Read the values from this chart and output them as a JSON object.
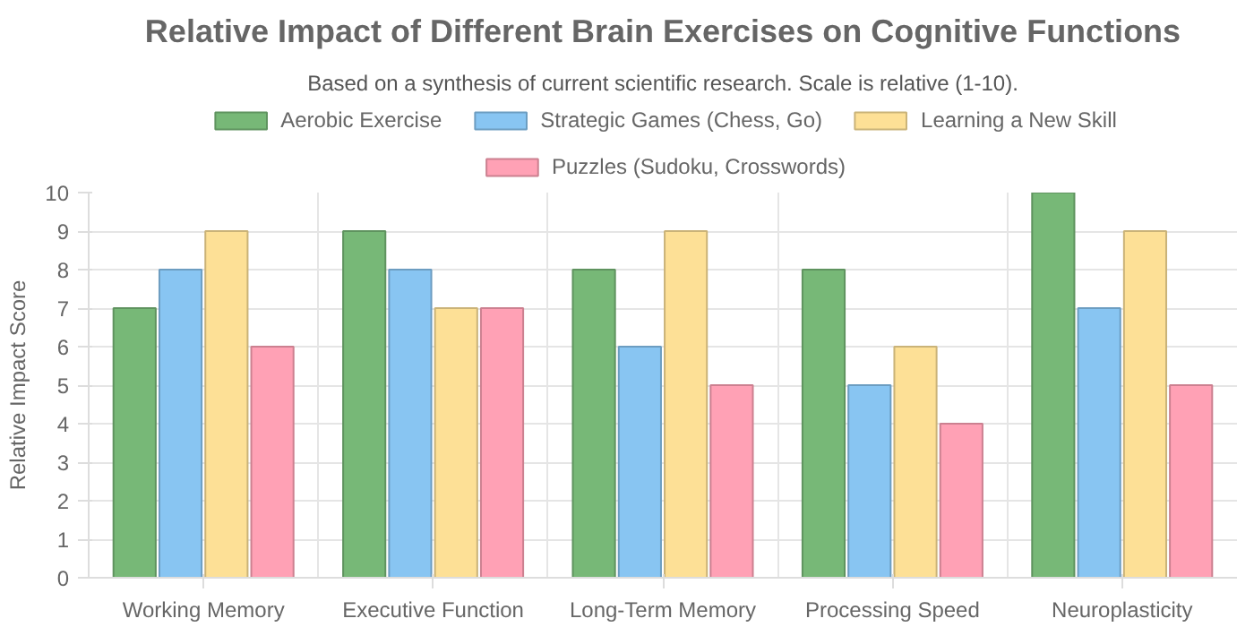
{
  "chart_data": {
    "type": "bar",
    "title": "Relative Impact of Different Brain Exercises on Cognitive Functions",
    "subtitle": "Based on a synthesis of current scientific research. Scale is relative (1-10).",
    "ylabel": "Relative Impact Score",
    "categories": [
      "Working Memory",
      "Executive Function",
      "Long-Term Memory",
      "Processing Speed",
      "Neuroplasticity"
    ],
    "series": [
      {
        "name": "Aerobic Exercise",
        "color": "#77b877",
        "values": [
          7,
          9,
          8,
          8,
          10
        ]
      },
      {
        "name": "Strategic Games (Chess, Go)",
        "color": "#88c5f2",
        "values": [
          8,
          8,
          6,
          5,
          7
        ]
      },
      {
        "name": "Learning a New Skill",
        "color": "#fde096",
        "values": [
          9,
          7,
          9,
          6,
          9
        ]
      },
      {
        "name": "Puzzles (Sudoku, Crosswords)",
        "color": "#ffa1b5",
        "values": [
          6,
          7,
          5,
          4,
          5
        ]
      }
    ],
    "ylim": [
      0,
      10
    ],
    "yticks": [
      0,
      1,
      2,
      3,
      4,
      5,
      6,
      7,
      8,
      9,
      10
    ],
    "grid": true,
    "legend": "top"
  }
}
